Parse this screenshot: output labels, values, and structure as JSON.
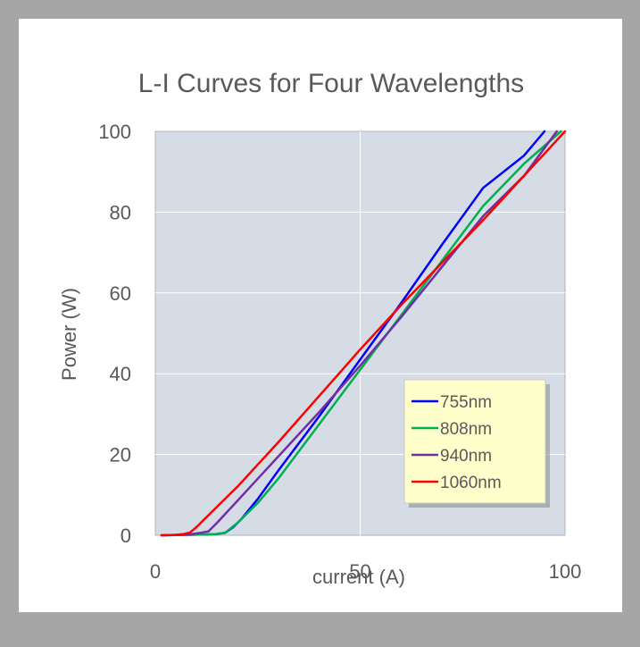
{
  "chart_data": {
    "type": "line",
    "title": "L-I Curves for Four Wavelengths",
    "xlabel": "current (A)",
    "ylabel": "Power (W)",
    "xlim": [
      0,
      100
    ],
    "ylim": [
      0,
      100
    ],
    "xticks": [
      0,
      50,
      100
    ],
    "yticks": [
      0,
      20,
      40,
      60,
      80,
      100
    ],
    "grid": true,
    "legend_position": "bottom-right",
    "plot_background": "#d6dce5",
    "series": [
      {
        "name": "755nm",
        "color": "#0000ff",
        "x": [
          1.5,
          8,
          12,
          15,
          17,
          19,
          21,
          25,
          30,
          40,
          50,
          60,
          70,
          80,
          90,
          95
        ],
        "y": [
          0,
          0.1,
          0.2,
          0.3,
          0.6,
          2,
          4,
          9,
          16,
          29.5,
          43.5,
          57.5,
          72,
          86,
          94,
          100
        ]
      },
      {
        "name": "808nm",
        "color": "#00b050",
        "x": [
          1.5,
          8,
          12,
          15,
          17,
          20,
          25,
          30,
          40,
          50,
          60,
          70,
          80,
          90,
          99
        ],
        "y": [
          0,
          0.1,
          0.2,
          0.3,
          0.6,
          3,
          8,
          14,
          27.5,
          41,
          54.5,
          68,
          81.5,
          92,
          100
        ]
      },
      {
        "name": "940nm",
        "color": "#7030a0",
        "x": [
          1.5,
          6,
          9,
          11,
          13,
          15,
          20,
          25,
          30,
          40,
          50,
          60,
          70,
          80,
          90,
          98
        ],
        "y": [
          0,
          0.1,
          0.3,
          0.6,
          1,
          3,
          8.5,
          14,
          19.5,
          30.5,
          42,
          54,
          66.5,
          79,
          89,
          100
        ]
      },
      {
        "name": "1060nm",
        "color": "#ff0000",
        "x": [
          1.5,
          5,
          7,
          8.5,
          10,
          15,
          20,
          30,
          40,
          50,
          60,
          70,
          80,
          90,
          100
        ],
        "y": [
          0,
          0.1,
          0.3,
          0.7,
          2,
          7,
          12,
          23,
          34.5,
          46,
          57,
          67.5,
          78,
          89,
          100
        ]
      }
    ]
  }
}
